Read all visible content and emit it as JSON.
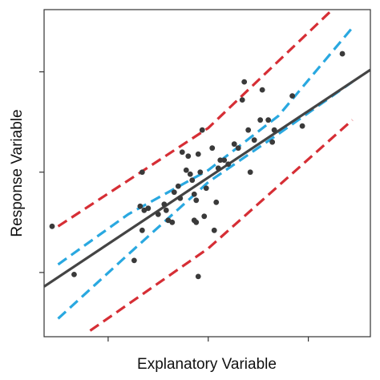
{
  "chart_data": {
    "type": "scatter",
    "xlabel": "Explanatory Variable",
    "ylabel": "Response Variable",
    "xlim": [
      -1.64,
      1.62
    ],
    "ylim": [
      -1.64,
      1.62
    ],
    "xticks": [
      -1,
      0,
      1
    ],
    "yticks": [
      -1,
      0,
      1
    ],
    "point_color": "#3a3a3a",
    "x": [
      -1.56,
      -1.34,
      -0.74,
      -0.68,
      -0.66,
      -0.66,
      -0.64,
      -0.6,
      -0.5,
      -0.44,
      -0.42,
      -0.4,
      -0.36,
      -0.34,
      -0.3,
      -0.28,
      -0.26,
      -0.22,
      -0.2,
      -0.18,
      -0.16,
      -0.14,
      -0.14,
      -0.12,
      -0.12,
      -0.1,
      -0.1,
      -0.08,
      -0.06,
      -0.04,
      -0.02,
      0.04,
      0.06,
      0.08,
      0.1,
      0.12,
      0.16,
      0.2,
      0.26,
      0.3,
      0.34,
      0.36,
      0.4,
      0.42,
      0.46,
      0.52,
      0.54,
      0.6,
      0.64,
      0.66,
      0.84,
      0.94,
      1.34
    ],
    "y": [
      -0.54,
      -1.02,
      -0.88,
      -0.34,
      0,
      -0.58,
      -0.38,
      -0.36,
      -0.42,
      -0.32,
      -0.38,
      -0.48,
      -0.5,
      -0.2,
      -0.14,
      -0.26,
      0.2,
      0.02,
      0.16,
      -0.02,
      -0.08,
      -0.22,
      -0.48,
      -0.5,
      -0.28,
      0.18,
      -1.04,
      0,
      0.42,
      -0.44,
      -0.16,
      0.24,
      -0.58,
      -0.3,
      0.04,
      0.12,
      0.12,
      0.08,
      0.28,
      0.24,
      0.72,
      0.9,
      0.42,
      0,
      0.32,
      0.52,
      0.82,
      0.52,
      0.3,
      0.42,
      0.76,
      0.46,
      1.18
    ],
    "lines": [
      {
        "color": "#d62e35",
        "dashed": true,
        "x": [
          -1.5,
          0,
          1.24
        ],
        "y": [
          -0.54,
          0.44,
          1.62
        ]
      },
      {
        "color": "#d62e35",
        "dashed": true,
        "x": [
          -1.18,
          0,
          1.44
        ],
        "y": [
          -1.58,
          -0.76,
          0.52
        ]
      },
      {
        "color": "#29a8e0",
        "dashed": true,
        "x": [
          -1.5,
          -0.8,
          0,
          0.7,
          1.44
        ],
        "y": [
          -0.92,
          -0.42,
          0.02,
          0.56,
          1.44
        ]
      },
      {
        "color": "#29a8e0",
        "dashed": true,
        "x": [
          -1.5,
          -0.8,
          0,
          0.7,
          1.44
        ],
        "y": [
          -1.46,
          -0.82,
          -0.1,
          0.38,
          0.9
        ]
      },
      {
        "color": "#444444",
        "dashed": false,
        "x": [
          -1.64,
          1.62
        ],
        "y": [
          -1.14,
          1.02
        ]
      }
    ]
  }
}
